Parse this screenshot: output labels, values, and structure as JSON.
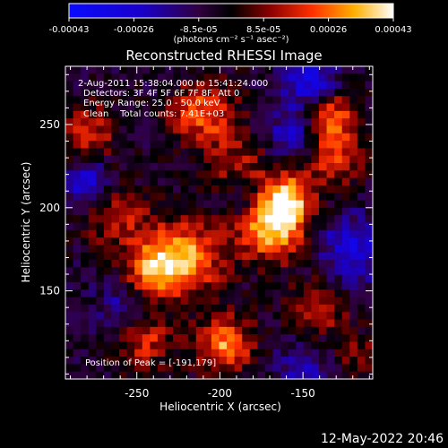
{
  "chart_data": {
    "type": "heatmap",
    "title": "Reconstructed RHESSI Image",
    "xlabel": "Heliocentric X (arcsec)",
    "ylabel": "Heliocentric Y (arcsec)",
    "xlim": [
      -293,
      -108
    ],
    "ylim": [
      97,
      285
    ],
    "xticks": [
      -250,
      -200,
      -150
    ],
    "yticks": [
      150,
      200,
      250
    ],
    "colorbar": {
      "ticks": [
        "-0.00043",
        "-0.00026",
        "-8.5e-05",
        "8.5e-05",
        "0.00026",
        "0.00043"
      ],
      "range": [
        -0.00043,
        0.00043
      ],
      "units_label": "(photons cm⁻² s⁻¹ asec⁻²)"
    },
    "annotations": [
      "2-Aug-2011 15:38:04.000 to 15:41:24.000",
      "Detectors: 3F 4F 5F 6F 7F 8F, Att 0",
      "Energy Range: 25.0 - 50.0 keV",
      "Clean    Total counts: 7.41E+03"
    ],
    "peak_label": "Position of Peak = [-191,179]",
    "hotspots": [
      {
        "x": -170,
        "y": 188,
        "amp": 1.0,
        "sigma": 14
      },
      {
        "x": -160,
        "y": 205,
        "amp": 0.9,
        "sigma": 12
      },
      {
        "x": -220,
        "y": 170,
        "amp": 0.85,
        "sigma": 16
      },
      {
        "x": -240,
        "y": 163,
        "amp": 0.75,
        "sigma": 12
      },
      {
        "x": -197,
        "y": 118,
        "amp": 0.85,
        "sigma": 12
      },
      {
        "x": -135,
        "y": 255,
        "amp": 0.8,
        "sigma": 12
      },
      {
        "x": -130,
        "y": 230,
        "amp": 0.55,
        "sigma": 12
      },
      {
        "x": -210,
        "y": 256,
        "amp": 0.7,
        "sigma": 14
      },
      {
        "x": -280,
        "y": 245,
        "amp": 0.6,
        "sigma": 12
      },
      {
        "x": -262,
        "y": 195,
        "amp": 0.5,
        "sigma": 14
      },
      {
        "x": -245,
        "y": 120,
        "amp": 0.55,
        "sigma": 12
      },
      {
        "x": -140,
        "y": 140,
        "amp": 0.5,
        "sigma": 12
      },
      {
        "x": -190,
        "y": 225,
        "amp": 0.45,
        "sigma": 12
      },
      {
        "x": -115,
        "y": 110,
        "amp": 0.35,
        "sigma": 10
      }
    ],
    "coldspots": [
      {
        "x": -145,
        "y": 275,
        "amp": 0.7,
        "sigma": 12
      },
      {
        "x": -155,
        "y": 245,
        "amp": 0.6,
        "sigma": 10
      },
      {
        "x": -280,
        "y": 215,
        "amp": 0.6,
        "sigma": 10
      },
      {
        "x": -185,
        "y": 205,
        "amp": 0.4,
        "sigma": 10
      },
      {
        "x": -120,
        "y": 175,
        "amp": 0.6,
        "sigma": 14
      },
      {
        "x": -260,
        "y": 140,
        "amp": 0.4,
        "sigma": 10
      },
      {
        "x": -150,
        "y": 105,
        "amp": 0.4,
        "sigma": 10
      }
    ]
  },
  "footer": {
    "timestamp": "12-May-2022 20:46"
  }
}
